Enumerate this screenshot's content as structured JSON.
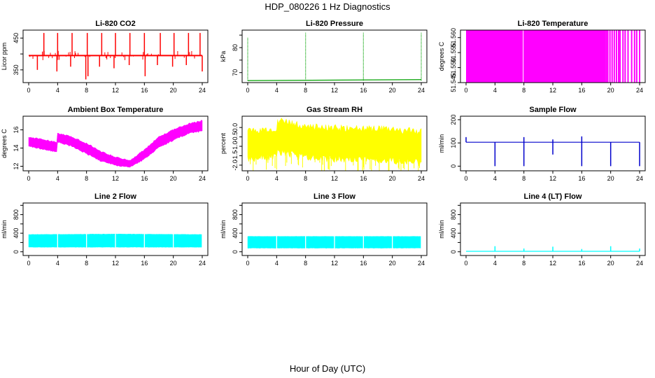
{
  "figure": {
    "title": "HDP_080226  1 Hz Diagnostics",
    "xlabel": "Hour of Day (UTC)"
  },
  "chart_data": [
    {
      "id": "co2",
      "type": "line",
      "title": "Li-820 CO2",
      "ylabel": "Licor ppm",
      "color": "#ff0000",
      "xlim": [
        0,
        24
      ],
      "ylim": [
        310,
        475
      ],
      "yticks": [
        350,
        400,
        450
      ],
      "ytick_labels": [
        "350",
        "",
        "450"
      ],
      "xticks": [
        0,
        4,
        8,
        12,
        16,
        20,
        24
      ],
      "baseline": 395,
      "spikes_up": [
        [
          2.1,
          466
        ],
        [
          4.0,
          466
        ],
        [
          6.0,
          466
        ],
        [
          8.1,
          466
        ],
        [
          10.1,
          466
        ],
        [
          12.0,
          466
        ],
        [
          14.0,
          466
        ],
        [
          16.0,
          466
        ],
        [
          18.2,
          466
        ],
        [
          20.1,
          466
        ],
        [
          22.1,
          466
        ],
        [
          23.7,
          466
        ]
      ],
      "spikes_down": [
        [
          1.2,
          350
        ],
        [
          3.9,
          345
        ],
        [
          5.8,
          360
        ],
        [
          7.9,
          320
        ],
        [
          8.2,
          330
        ],
        [
          9.8,
          360
        ],
        [
          11.8,
          355
        ],
        [
          13.9,
          365
        ],
        [
          16.1,
          330
        ],
        [
          17.8,
          365
        ],
        [
          19.9,
          360
        ],
        [
          21.8,
          365
        ],
        [
          24.0,
          345
        ]
      ]
    },
    {
      "id": "pressure",
      "type": "line",
      "title": "Li-820 Pressure",
      "ylabel": "kPa",
      "color": "#00a000",
      "xlim": [
        0,
        24
      ],
      "ylim": [
        66,
        87
      ],
      "yticks": [
        70,
        75,
        80,
        85
      ],
      "ytick_labels": [
        "70",
        "",
        "80",
        ""
      ],
      "xticks": [
        0,
        4,
        8,
        12,
        16,
        20,
        24
      ],
      "baseline_start": 66.8,
      "baseline_end": 67.2,
      "spikes": [
        [
          0.0,
          84
        ],
        [
          8.0,
          86
        ],
        [
          16.0,
          86
        ],
        [
          24.0,
          86
        ]
      ]
    },
    {
      "id": "licor_temp",
      "type": "bar",
      "title": "Li-820 Temperature",
      "ylabel": "degrees C",
      "color": "#ff00ff",
      "xlim": [
        0,
        24
      ],
      "ylim": [
        51.545,
        51.5625
      ],
      "yticks": [
        51.545,
        51.55,
        51.555,
        51.56
      ],
      "ytick_labels": [
        "51.545",
        "51.550",
        "51.555",
        "51.560"
      ],
      "xticks": [
        0,
        4,
        8,
        12,
        16,
        20,
        24
      ],
      "fill_until": 19.3,
      "gap_at": [
        7.9
      ],
      "sparse_bars": [
        19.4,
        19.6,
        19.9,
        20.2,
        20.5,
        20.8,
        21.1,
        21.3,
        21.7,
        22.0,
        22.4,
        22.9,
        23.3,
        23.6,
        24.0
      ]
    },
    {
      "id": "box_temp",
      "type": "area",
      "title": "Ambient Box Temperature",
      "ylabel": "degrees C",
      "color": "#ff00ff",
      "xlim": [
        0,
        24
      ],
      "ylim": [
        11.5,
        17.5
      ],
      "yticks": [
        12,
        14,
        16
      ],
      "ytick_labels": [
        "12",
        "14",
        "16"
      ],
      "xticks": [
        0,
        4,
        8,
        12,
        16,
        20,
        24
      ],
      "upper": [
        [
          0,
          15.2
        ],
        [
          2,
          14.9
        ],
        [
          3.9,
          14.6
        ],
        [
          4.0,
          15.6
        ],
        [
          6,
          15.2
        ],
        [
          8,
          14.5
        ],
        [
          10,
          13.6
        ],
        [
          12,
          13.0
        ],
        [
          14,
          12.6
        ],
        [
          16,
          13.8
        ],
        [
          18,
          15.2
        ],
        [
          20,
          16.0
        ],
        [
          22,
          16.6
        ],
        [
          24,
          17.0
        ]
      ],
      "lower": [
        [
          0,
          14.2
        ],
        [
          2,
          13.9
        ],
        [
          3.9,
          13.6
        ],
        [
          4.0,
          14.7
        ],
        [
          6,
          14.2
        ],
        [
          8,
          13.4
        ],
        [
          10,
          12.6
        ],
        [
          12,
          12.1
        ],
        [
          14,
          11.9
        ],
        [
          16,
          12.8
        ],
        [
          18,
          14.1
        ],
        [
          20,
          14.9
        ],
        [
          22,
          15.6
        ],
        [
          24,
          15.9
        ]
      ]
    },
    {
      "id": "rh",
      "type": "area",
      "title": "Gas Stream RH",
      "ylabel": "percent",
      "color": "#ffff00",
      "xlim": [
        0,
        24
      ],
      "ylim": [
        -2.3,
        0.6
      ],
      "yticks": [
        -2.0,
        -1.5,
        -1.0,
        -0.5,
        0.0
      ],
      "ytick_labels": [
        "-2.0",
        "-1.5",
        "-1.0",
        "-0.5",
        "0.0"
      ],
      "xticks": [
        0,
        4,
        8,
        12,
        16,
        20,
        24
      ],
      "upper": [
        [
          0,
          -0.2
        ],
        [
          4,
          -0.2
        ],
        [
          4.05,
          0.3
        ],
        [
          8,
          0.0
        ],
        [
          12,
          -0.1
        ],
        [
          16,
          -0.1
        ],
        [
          20,
          -0.2
        ],
        [
          24,
          -0.3
        ]
      ],
      "lower": [
        [
          0,
          -1.6
        ],
        [
          4,
          -1.5
        ],
        [
          4.05,
          -1.2
        ],
        [
          8,
          -1.5
        ],
        [
          12,
          -1.6
        ],
        [
          16,
          -1.6
        ],
        [
          20,
          -1.7
        ],
        [
          24,
          -1.8
        ]
      ]
    },
    {
      "id": "sample_flow",
      "type": "line",
      "title": "Sample Flow",
      "ylabel": "ml/min",
      "color": "#0000cc",
      "xlim": [
        0,
        24
      ],
      "ylim": [
        -20,
        215
      ],
      "yticks": [
        0,
        100,
        200
      ],
      "ytick_labels": [
        "0",
        "100",
        "200"
      ],
      "xticks": [
        0,
        4,
        8,
        12,
        16,
        20,
        24
      ],
      "baseline": 103,
      "spikes_up": [
        [
          0.0,
          125
        ],
        [
          8.0,
          125
        ],
        [
          12.0,
          115
        ],
        [
          16.0,
          128
        ]
      ],
      "spikes_down": [
        [
          4.0,
          0
        ],
        [
          8.0,
          0
        ],
        [
          12.0,
          50
        ],
        [
          16.0,
          0
        ],
        [
          20.0,
          0
        ],
        [
          24.0,
          0
        ]
      ]
    },
    {
      "id": "line2",
      "type": "area",
      "title": "Line 2 Flow",
      "ylabel": "ml/min",
      "color": "#00ffff",
      "xlim": [
        0,
        24
      ],
      "ylim": [
        -80,
        1050
      ],
      "yticks": [
        0,
        200,
        400,
        600,
        800,
        1000
      ],
      "ytick_labels": [
        "0",
        "",
        "400",
        "",
        "800",
        ""
      ],
      "xticks": [
        0,
        4,
        8,
        12,
        16,
        20,
        24
      ],
      "upper": [
        [
          0,
          370
        ],
        [
          12,
          380
        ],
        [
          24,
          370
        ]
      ],
      "lower": [
        [
          0,
          100
        ],
        [
          24,
          100
        ]
      ],
      "gap_at": [
        4.0,
        8.0,
        12.0,
        16.0,
        20.0,
        24.0
      ]
    },
    {
      "id": "line3",
      "type": "area",
      "title": "Line 3 Flow",
      "ylabel": "ml/min",
      "color": "#00ffff",
      "xlim": [
        0,
        24
      ],
      "ylim": [
        -80,
        1050
      ],
      "yticks": [
        0,
        200,
        400,
        600,
        800,
        1000
      ],
      "ytick_labels": [
        "0",
        "",
        "400",
        "",
        "800",
        ""
      ],
      "xticks": [
        0,
        4,
        8,
        12,
        16,
        20,
        24
      ],
      "upper": [
        [
          0,
          330
        ],
        [
          24,
          330
        ]
      ],
      "lower": [
        [
          0,
          80
        ],
        [
          24,
          80
        ]
      ],
      "gap_at": [
        4.0,
        8.0,
        12.0,
        16.0,
        20.0,
        24.0
      ]
    },
    {
      "id": "line4",
      "type": "line",
      "title": "Line 4 (LT) Flow",
      "ylabel": "ml/min",
      "color": "#00ffff",
      "xlim": [
        0,
        24
      ],
      "ylim": [
        -80,
        1050
      ],
      "yticks": [
        0,
        200,
        400,
        600,
        800,
        1000
      ],
      "ytick_labels": [
        "0",
        "",
        "400",
        "",
        "800",
        ""
      ],
      "xticks": [
        0,
        4,
        8,
        12,
        16,
        20,
        24
      ],
      "baseline": 10,
      "spikes_up": [
        [
          4.0,
          120
        ],
        [
          8.0,
          70
        ],
        [
          12.0,
          110
        ],
        [
          16.0,
          60
        ],
        [
          20.0,
          120
        ],
        [
          24.0,
          70
        ]
      ]
    }
  ]
}
